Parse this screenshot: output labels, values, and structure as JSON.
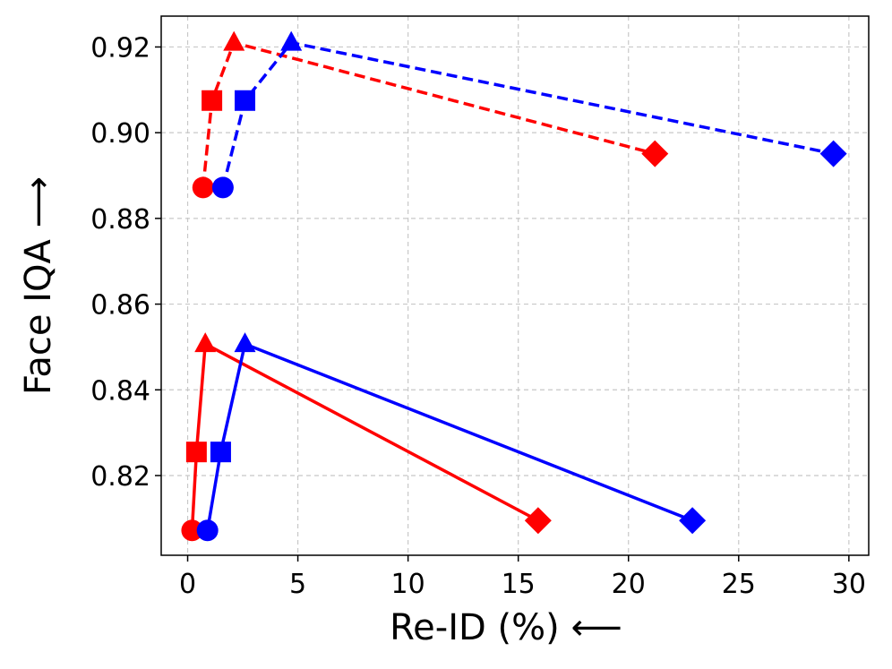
{
  "chart_data": {
    "type": "line",
    "title": "",
    "xlabel": "Re-ID (%) ⟵",
    "ylabel": "Face IQA ⟶",
    "xlim": [
      -1.2,
      30.9
    ],
    "ylim": [
      0.8014,
      0.9272
    ],
    "xticks": [
      0,
      5,
      10,
      15,
      20,
      25,
      30
    ],
    "yticks": [
      0.82,
      0.84,
      0.86,
      0.88,
      0.9,
      0.92
    ],
    "xtick_labels": [
      "0",
      "5",
      "10",
      "15",
      "20",
      "25",
      "30"
    ],
    "ytick_labels": [
      "0.82",
      "0.84",
      "0.86",
      "0.88",
      "0.90",
      "0.92"
    ],
    "grid": true,
    "legend": "none",
    "series": [
      {
        "name": "red-dashed",
        "color": "#ff0000",
        "dash": true,
        "points": [
          {
            "x": 0.7,
            "y": 0.8872,
            "marker": "circle"
          },
          {
            "x": 1.1,
            "y": 0.9075,
            "marker": "square"
          },
          {
            "x": 2.1,
            "y": 0.921,
            "marker": "triangle"
          },
          {
            "x": 21.2,
            "y": 0.8951,
            "marker": "diamond"
          }
        ]
      },
      {
        "name": "blue-dashed",
        "color": "#0000ff",
        "dash": true,
        "points": [
          {
            "x": 1.6,
            "y": 0.8872,
            "marker": "circle"
          },
          {
            "x": 2.6,
            "y": 0.9075,
            "marker": "square"
          },
          {
            "x": 4.7,
            "y": 0.921,
            "marker": "triangle"
          },
          {
            "x": 29.3,
            "y": 0.8951,
            "marker": "diamond"
          }
        ]
      },
      {
        "name": "red-solid",
        "color": "#ff0000",
        "dash": false,
        "points": [
          {
            "x": 0.2,
            "y": 0.8072,
            "marker": "circle"
          },
          {
            "x": 0.4,
            "y": 0.8255,
            "marker": "square"
          },
          {
            "x": 0.8,
            "y": 0.8507,
            "marker": "triangle"
          },
          {
            "x": 15.9,
            "y": 0.8095,
            "marker": "diamond"
          }
        ]
      },
      {
        "name": "blue-solid",
        "color": "#0000ff",
        "dash": false,
        "points": [
          {
            "x": 0.9,
            "y": 0.8072,
            "marker": "circle"
          },
          {
            "x": 1.5,
            "y": 0.8255,
            "marker": "square"
          },
          {
            "x": 2.6,
            "y": 0.8507,
            "marker": "triangle"
          },
          {
            "x": 22.9,
            "y": 0.8095,
            "marker": "diamond"
          }
        ]
      }
    ]
  }
}
